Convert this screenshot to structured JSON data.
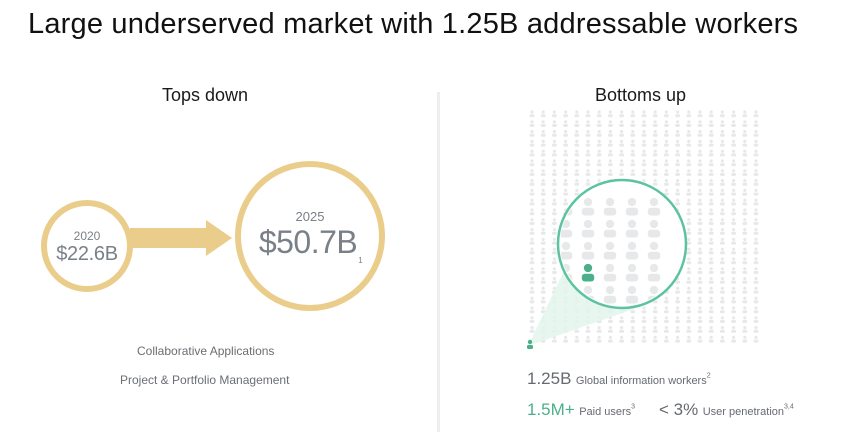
{
  "slide": {
    "title": "Large underserved market with 1.25B addressable workers"
  },
  "tops_down": {
    "heading": "Tops down",
    "start": {
      "year": "2020",
      "value": "$22.6B"
    },
    "end": {
      "year": "2025",
      "value": "$50.7B",
      "footnote": "1"
    },
    "labels": [
      "Collaborative Applications",
      "Project & Portfolio Management"
    ]
  },
  "bottoms_up": {
    "heading": "Bottoms up",
    "workers": {
      "value": "1.25B",
      "label": "Global information workers",
      "footnote": "2"
    },
    "paid": {
      "value": "1.5M+",
      "label": "Paid users",
      "footnote": "3"
    },
    "penetration": {
      "value": "< 3%",
      "label": "User penetration",
      "footnote": "3,4"
    }
  },
  "colors": {
    "gold": "#ebcd8b",
    "green": "#4bb08a",
    "grey_text": "#7a8088",
    "person_grey": "#e6e8ea"
  },
  "icons": [
    "person-icon",
    "arrow-right-icon"
  ]
}
